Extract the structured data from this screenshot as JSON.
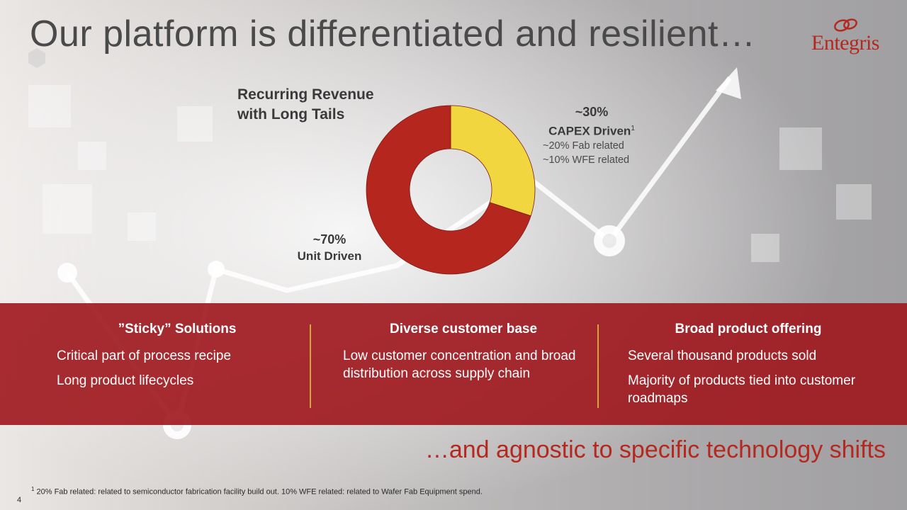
{
  "slide": {
    "title": "Our platform is differentiated and resilient…",
    "logo_text": "Entegris",
    "page_number": "4"
  },
  "chart_data": {
    "type": "pie",
    "variant": "donut",
    "title": "Recurring Revenue with Long Tails",
    "title_lines": [
      "Recurring Revenue",
      "with Long Tails"
    ],
    "slices": [
      {
        "name": "CAPEX Driven",
        "value": 30,
        "value_label": "~30%",
        "footnote_mark": "1",
        "color": "#f2d640",
        "breakdown": [
          "~20% Fab related",
          "~10% WFE related"
        ]
      },
      {
        "name": "Unit Driven",
        "value": 70,
        "value_label": "~70%",
        "color": "#b5261e"
      }
    ]
  },
  "colors": {
    "accent_red": "#b5281f",
    "band_red": "#9e161c",
    "divider_gold": "#d4a63a",
    "slice_yellow": "#f2d640",
    "slice_red": "#b5261e"
  },
  "band": {
    "columns": [
      {
        "heading": "”Sticky” Solutions",
        "items": [
          "Critical part of process recipe",
          "Long product lifecycles"
        ]
      },
      {
        "heading": "Diverse customer base",
        "items": [
          "Low customer concentration and broad distribution across supply chain"
        ]
      },
      {
        "heading": "Broad product offering",
        "items": [
          "Several thousand products sold",
          "Majority of products tied into customer roadmaps"
        ]
      }
    ]
  },
  "tagline": "…and agnostic to specific technology shifts",
  "footnote": {
    "mark": "1",
    "text": "20% Fab related: related to semiconductor fabrication facility build out. 10% WFE related: related to Wafer Fab Equipment spend."
  }
}
